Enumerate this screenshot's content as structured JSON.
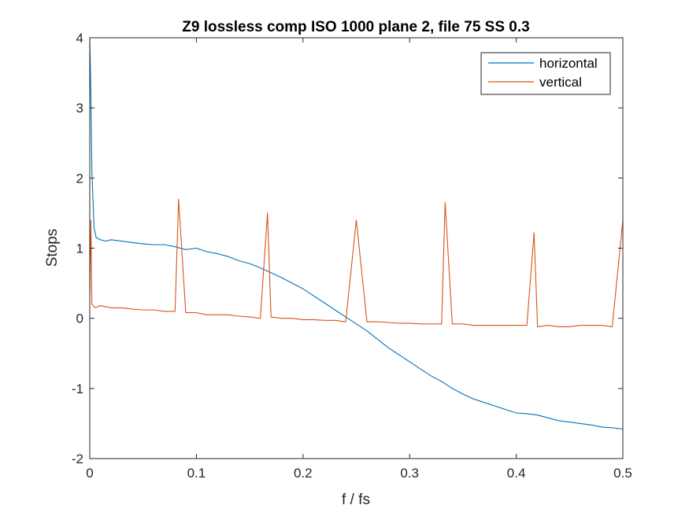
{
  "chart_data": {
    "type": "line",
    "title": "Z9 lossless comp ISO 1000 plane 2, file 75 SS 0.3",
    "xlabel": "f / fs",
    "ylabel": "Stops",
    "xlim": [
      0,
      0.5
    ],
    "ylim": [
      -2,
      4
    ],
    "xticks": [
      0,
      0.1,
      0.2,
      0.3,
      0.4,
      0.5
    ],
    "xtick_labels": [
      "0",
      "0.1",
      "0.2",
      "0.3",
      "0.4",
      "0.5"
    ],
    "yticks": [
      -2,
      -1,
      0,
      1,
      2,
      3,
      4
    ],
    "ytick_labels": [
      "-2",
      "-1",
      "0",
      "1",
      "2",
      "3",
      "4"
    ],
    "grid": false,
    "legend_position": "top-right",
    "series": [
      {
        "name": "horizontal",
        "color": "#0072BD",
        "x": [
          0,
          0.001,
          0.002,
          0.004,
          0.006,
          0.01,
          0.015,
          0.02,
          0.03,
          0.04,
          0.05,
          0.06,
          0.07,
          0.08,
          0.09,
          0.1,
          0.11,
          0.12,
          0.13,
          0.14,
          0.15,
          0.16,
          0.17,
          0.18,
          0.19,
          0.2,
          0.21,
          0.22,
          0.23,
          0.24,
          0.25,
          0.26,
          0.27,
          0.28,
          0.29,
          0.3,
          0.31,
          0.32,
          0.33,
          0.34,
          0.35,
          0.36,
          0.37,
          0.38,
          0.39,
          0.4,
          0.41,
          0.42,
          0.43,
          0.44,
          0.45,
          0.46,
          0.47,
          0.48,
          0.49,
          0.5
        ],
        "y": [
          4.0,
          3.2,
          2.1,
          1.3,
          1.15,
          1.12,
          1.1,
          1.12,
          1.1,
          1.08,
          1.06,
          1.05,
          1.05,
          1.02,
          0.98,
          1.0,
          0.95,
          0.92,
          0.88,
          0.82,
          0.78,
          0.72,
          0.65,
          0.58,
          0.5,
          0.42,
          0.32,
          0.22,
          0.12,
          0.02,
          -0.08,
          -0.18,
          -0.3,
          -0.42,
          -0.52,
          -0.62,
          -0.72,
          -0.82,
          -0.9,
          -1.0,
          -1.08,
          -1.15,
          -1.2,
          -1.25,
          -1.3,
          -1.35,
          -1.36,
          -1.38,
          -1.42,
          -1.46,
          -1.48,
          -1.5,
          -1.52,
          -1.55,
          -1.56,
          -1.58
        ]
      },
      {
        "name": "vertical",
        "color": "#D95319",
        "x": [
          0,
          0.001,
          0.002,
          0.005,
          0.01,
          0.02,
          0.03,
          0.04,
          0.05,
          0.06,
          0.07,
          0.08,
          0.0833,
          0.09,
          0.1,
          0.11,
          0.12,
          0.13,
          0.14,
          0.15,
          0.16,
          0.1667,
          0.17,
          0.18,
          0.19,
          0.2,
          0.21,
          0.22,
          0.23,
          0.24,
          0.25,
          0.26,
          0.27,
          0.28,
          0.29,
          0.3,
          0.31,
          0.32,
          0.33,
          0.3333,
          0.34,
          0.35,
          0.36,
          0.37,
          0.38,
          0.39,
          0.4,
          0.41,
          0.4167,
          0.42,
          0.43,
          0.44,
          0.45,
          0.46,
          0.47,
          0.48,
          0.49,
          0.5
        ],
        "y": [
          0.3,
          1.4,
          0.2,
          0.15,
          0.18,
          0.15,
          0.15,
          0.13,
          0.12,
          0.12,
          0.1,
          0.1,
          1.7,
          0.08,
          0.08,
          0.05,
          0.05,
          0.05,
          0.03,
          0.02,
          0.0,
          1.5,
          0.02,
          0.0,
          0.0,
          -0.02,
          -0.02,
          -0.03,
          -0.03,
          -0.05,
          1.4,
          -0.05,
          -0.05,
          -0.06,
          -0.07,
          -0.07,
          -0.08,
          -0.08,
          -0.08,
          1.65,
          -0.08,
          -0.08,
          -0.1,
          -0.1,
          -0.1,
          -0.1,
          -0.1,
          -0.1,
          1.22,
          -0.12,
          -0.1,
          -0.12,
          -0.12,
          -0.1,
          -0.1,
          -0.1,
          -0.12,
          1.4
        ]
      }
    ]
  }
}
